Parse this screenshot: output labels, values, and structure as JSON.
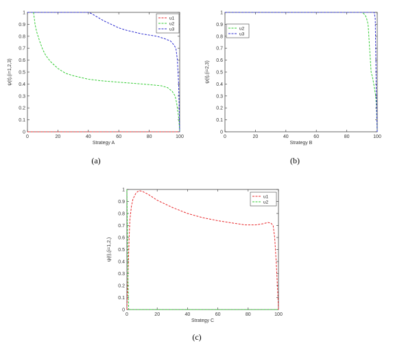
{
  "chart_data": [
    {
      "type": "line",
      "caption": "(a)",
      "xlabel": "Strategy A",
      "ylabel": "ψ(t),(i=1,2,3)",
      "xlim": [
        0,
        100
      ],
      "ylim": [
        0,
        1
      ],
      "xticks": [
        "0",
        "20",
        "40",
        "60",
        "80",
        "100"
      ],
      "yticks": [
        "0",
        "0.1",
        "0.2",
        "0.3",
        "0.4",
        "0.5",
        "0.6",
        "0.7",
        "0.8",
        "0.9",
        "1"
      ],
      "grid": false,
      "legend_position": "top-right",
      "series": [
        {
          "name": "u1",
          "color": "#e8272a",
          "style": "dashed",
          "points": [
            [
              0,
              0
            ],
            [
              20,
              0
            ],
            [
              40,
              0
            ],
            [
              60,
              0
            ],
            [
              80,
              0
            ],
            [
              100,
              0
            ]
          ]
        },
        {
          "name": "u2",
          "color": "#33cc33",
          "style": "dashed",
          "points": [
            [
              4,
              1
            ],
            [
              5,
              0.9
            ],
            [
              6,
              0.84
            ],
            [
              8,
              0.76
            ],
            [
              10,
              0.69
            ],
            [
              12,
              0.64
            ],
            [
              15,
              0.59
            ],
            [
              20,
              0.53
            ],
            [
              25,
              0.49
            ],
            [
              30,
              0.47
            ],
            [
              40,
              0.44
            ],
            [
              50,
              0.425
            ],
            [
              60,
              0.415
            ],
            [
              70,
              0.405
            ],
            [
              80,
              0.395
            ],
            [
              88,
              0.385
            ],
            [
              92,
              0.37
            ],
            [
              95,
              0.34
            ],
            [
              97,
              0.3
            ],
            [
              98,
              0.24
            ],
            [
              99,
              0.15
            ],
            [
              99.6,
              0.08
            ],
            [
              100,
              0
            ]
          ]
        },
        {
          "name": "u3",
          "color": "#2a2ad0",
          "style": "dashed",
          "points": [
            [
              0,
              1
            ],
            [
              40,
              1
            ],
            [
              42,
              0.99
            ],
            [
              46,
              0.96
            ],
            [
              50,
              0.93
            ],
            [
              55,
              0.9
            ],
            [
              60,
              0.87
            ],
            [
              65,
              0.85
            ],
            [
              70,
              0.835
            ],
            [
              75,
              0.82
            ],
            [
              80,
              0.81
            ],
            [
              85,
              0.8
            ],
            [
              90,
              0.78
            ],
            [
              94,
              0.76
            ],
            [
              96,
              0.73
            ],
            [
              97.5,
              0.7
            ],
            [
              98.5,
              0.6
            ],
            [
              99.3,
              0.4
            ],
            [
              100,
              0
            ]
          ]
        }
      ]
    },
    {
      "type": "line",
      "caption": "(b)",
      "xlabel": "Strategy B",
      "ylabel": "ψ(t),(i=2,3)",
      "xlim": [
        0,
        100
      ],
      "ylim": [
        0,
        1
      ],
      "xticks": [
        "0",
        "20",
        "40",
        "60",
        "80",
        "100"
      ],
      "yticks": [
        "0",
        "0.1",
        "0.2",
        "0.3",
        "0.4",
        "0.5",
        "0.6",
        "0.7",
        "0.8",
        "0.9",
        "1"
      ],
      "grid": false,
      "legend_position": "top-left",
      "series": [
        {
          "name": "u2",
          "color": "#33cc33",
          "style": "dashed",
          "points": [
            [
              0,
              1
            ],
            [
              90,
              1
            ],
            [
              92,
              0.98
            ],
            [
              93,
              0.95
            ],
            [
              94,
              0.9
            ],
            [
              94.5,
              0.8
            ],
            [
              95,
              0.7
            ],
            [
              95.5,
              0.6
            ],
            [
              96,
              0.5
            ],
            [
              97,
              0.45
            ],
            [
              98,
              0.38
            ],
            [
              99,
              0.3
            ],
            [
              99.5,
              0.2
            ],
            [
              100,
              0
            ]
          ]
        },
        {
          "name": "u3",
          "color": "#2a2ad0",
          "style": "dashed",
          "points": [
            [
              0,
              1
            ],
            [
              98,
              1
            ],
            [
              98.7,
              0.95
            ],
            [
              99,
              0.7
            ],
            [
              99.3,
              0.4
            ],
            [
              99.6,
              0.2
            ],
            [
              100,
              0
            ]
          ]
        }
      ]
    },
    {
      "type": "line",
      "caption": "(c)",
      "xlabel": "Strategy C",
      "ylabel": "ψ(t),(i=1,2,)",
      "xlim": [
        0,
        100
      ],
      "ylim": [
        0,
        1
      ],
      "xticks": [
        "0",
        "20",
        "40",
        "60",
        "80",
        "100"
      ],
      "yticks": [
        "0",
        "0.1",
        "0.2",
        "0.3",
        "0.4",
        "0.5",
        "0.6",
        "0.7",
        "0.8",
        "0.9",
        "1"
      ],
      "grid": false,
      "legend_position": "top-right",
      "series": [
        {
          "name": "u1",
          "color": "#e8272a",
          "style": "dashed",
          "points": [
            [
              0,
              0
            ],
            [
              0.5,
              0.2
            ],
            [
              1,
              0.4
            ],
            [
              1.5,
              0.6
            ],
            [
              2,
              0.75
            ],
            [
              3,
              0.86
            ],
            [
              4,
              0.92
            ],
            [
              6,
              0.97
            ],
            [
              8,
              0.99
            ],
            [
              10,
              0.985
            ],
            [
              14,
              0.96
            ],
            [
              20,
              0.91
            ],
            [
              30,
              0.85
            ],
            [
              40,
              0.8
            ],
            [
              50,
              0.765
            ],
            [
              60,
              0.74
            ],
            [
              70,
              0.72
            ],
            [
              78,
              0.705
            ],
            [
              85,
              0.705
            ],
            [
              90,
              0.715
            ],
            [
              93,
              0.725
            ],
            [
              95,
              0.72
            ],
            [
              96.5,
              0.7
            ],
            [
              97.5,
              0.6
            ],
            [
              98.5,
              0.4
            ],
            [
              99.5,
              0.15
            ],
            [
              100,
              0
            ]
          ]
        },
        {
          "name": "u2",
          "color": "#33cc33",
          "style": "dashed",
          "points": [
            [
              0,
              1
            ],
            [
              0.4,
              0.6
            ],
            [
              0.8,
              0.2
            ],
            [
              1.2,
              0
            ],
            [
              100,
              0
            ]
          ]
        }
      ]
    }
  ]
}
